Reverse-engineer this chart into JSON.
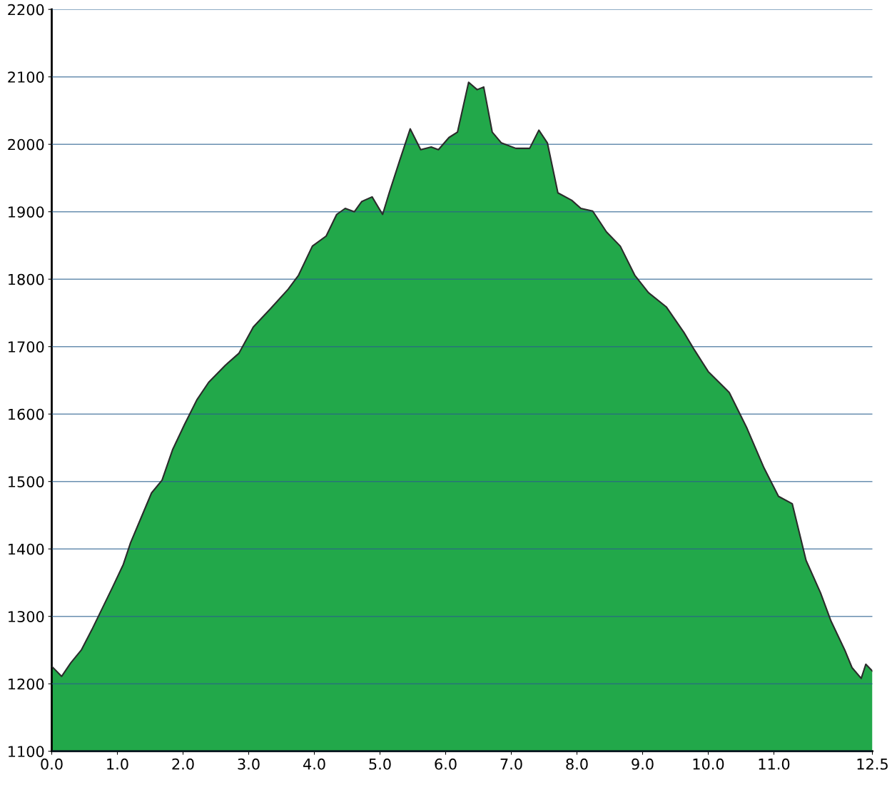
{
  "chart_data": {
    "type": "area",
    "color": "#22a84a",
    "grid": "y",
    "x": [
      0,
      0.15,
      0.29,
      0.45,
      0.61,
      0.77,
      0.93,
      1.09,
      1.2,
      1.36,
      1.52,
      1.68,
      1.84,
      2.02,
      2.21,
      2.39,
      2.64,
      2.85,
      3.07,
      3.33,
      3.6,
      3.76,
      3.97,
      4.18,
      4.34,
      4.47,
      4.61,
      4.72,
      4.88,
      5.04,
      5.14,
      5.3,
      5.46,
      5.62,
      5.78,
      5.89,
      6.05,
      6.18,
      6.35,
      6.48,
      6.58,
      6.71,
      6.85,
      7.07,
      7.28,
      7.42,
      7.55,
      7.71,
      7.92,
      8.06,
      8.24,
      8.45,
      8.66,
      8.88,
      9.09,
      9.36,
      9.63,
      9.79,
      10.0,
      10.32,
      10.59,
      10.85,
      11.07,
      11.28,
      11.49,
      11.71,
      11.87,
      12.08,
      12.19,
      12.33,
      12.4,
      12.5
    ],
    "values": [
      1226,
      1211,
      1231,
      1250,
      1280,
      1312,
      1344,
      1377,
      1409,
      1446,
      1483,
      1502,
      1547,
      1584,
      1621,
      1647,
      1672,
      1690,
      1729,
      1756,
      1785,
      1806,
      1849,
      1864,
      1896,
      1905,
      1900,
      1915,
      1922,
      1896,
      1928,
      1976,
      2023,
      1992,
      1996,
      1992,
      2010,
      2018,
      2092,
      2081,
      2085,
      2018,
      2002,
      1994,
      1994,
      2021,
      2002,
      1928,
      1917,
      1905,
      1901,
      1870,
      1849,
      1806,
      1780,
      1759,
      1721,
      1695,
      1663,
      1632,
      1579,
      1520,
      1478,
      1467,
      1383,
      1335,
      1293,
      1250,
      1224,
      1208,
      1229,
      1219
    ],
    "xlim": [
      0,
      12.5
    ],
    "ylim": [
      1100,
      2200
    ],
    "xticks": [
      {
        "value": 0,
        "label": "0.0"
      },
      {
        "value": 1,
        "label": "1.0"
      },
      {
        "value": 2,
        "label": "2.0"
      },
      {
        "value": 3,
        "label": "3.0"
      },
      {
        "value": 4,
        "label": "4.0"
      },
      {
        "value": 5,
        "label": "5.0"
      },
      {
        "value": 6,
        "label": "6.0"
      },
      {
        "value": 7,
        "label": "7.0"
      },
      {
        "value": 8,
        "label": "8.0"
      },
      {
        "value": 9,
        "label": "9.0"
      },
      {
        "value": 10,
        "label": "10.0"
      },
      {
        "value": 11,
        "label": "11.0"
      },
      {
        "value": 12.5,
        "label": "12.5"
      }
    ],
    "yticks": [
      1100,
      1200,
      1300,
      1400,
      1500,
      1600,
      1700,
      1800,
      1900,
      2000,
      2100,
      2200
    ]
  }
}
